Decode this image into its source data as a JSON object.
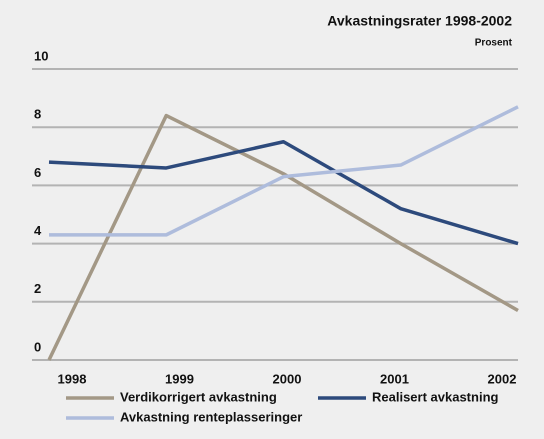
{
  "chart_data": {
    "type": "line",
    "title": "Avkastningsrater 1998-2002",
    "subtitle": "Prosent",
    "categories": [
      "1998",
      "1999",
      "2000",
      "2001",
      "2002"
    ],
    "series": [
      {
        "name": "Verdikorrigert avkastning",
        "color": "#a39886",
        "values": [
          0,
          8.4,
          6.4,
          4.0,
          1.7
        ]
      },
      {
        "name": "Realisert avkastning",
        "color": "#2d4a7c",
        "values": [
          6.8,
          6.6,
          7.5,
          5.2,
          4.0
        ]
      },
      {
        "name": "Avkastning renteplasseringer",
        "color": "#aebcdc",
        "values": [
          4.3,
          4.3,
          6.3,
          6.7,
          8.7
        ]
      }
    ],
    "ylim": [
      0,
      10
    ],
    "yticks": [
      0,
      2,
      4,
      6,
      8,
      10
    ],
    "grid": true
  }
}
